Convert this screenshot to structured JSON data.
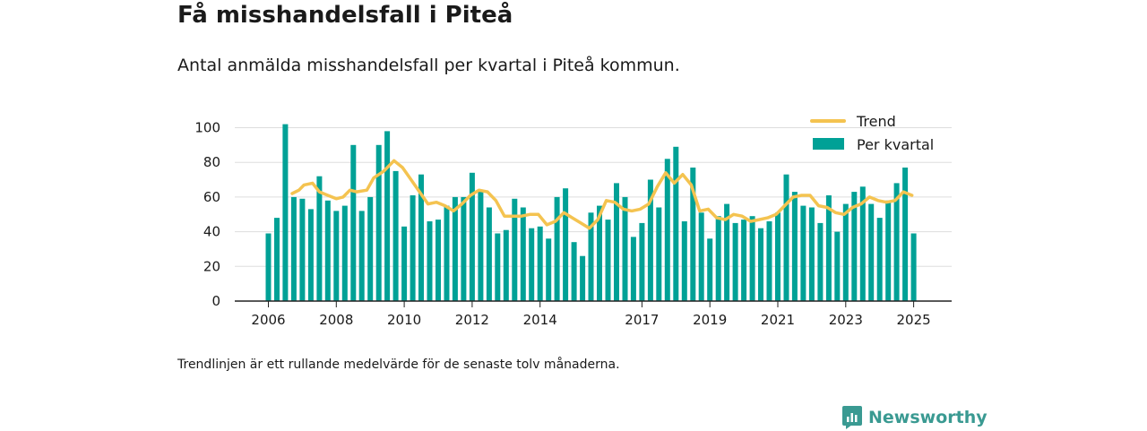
{
  "title": "Få misshandelsfall i Piteå",
  "subtitle": "Antal anmälda misshandelsfall per kvartal i Piteå kommun.",
  "footnote": "Trendlinjen är ett rullande medelvärde för de senaste tolv månaderna.",
  "brand": {
    "name": "Newsworthy",
    "logo_icon": "newsworthy-logo-icon"
  },
  "colors": {
    "bars": "#00a196",
    "trend": "#f4c350",
    "grid": "#dddddd",
    "axis": "#222222",
    "brand": "#3a9a92"
  },
  "chart_data": {
    "type": "bar",
    "title": "",
    "xlabel": "",
    "ylabel": "",
    "ylim": [
      0,
      110
    ],
    "y_ticks": [
      0,
      20,
      40,
      60,
      80,
      100
    ],
    "x_ticks": [
      {
        "label": "2006",
        "x": 2006.0
      },
      {
        "label": "2008",
        "x": 2008.0
      },
      {
        "label": "2010",
        "x": 2010.0
      },
      {
        "label": "2012",
        "x": 2012.0
      },
      {
        "label": "2014",
        "x": 2014.0
      },
      {
        "label": "2017",
        "x": 2017.0
      },
      {
        "label": "2019",
        "x": 2019.0
      },
      {
        "label": "2021",
        "x": 2021.0
      },
      {
        "label": "2023",
        "x": 2023.0
      },
      {
        "label": "2025",
        "x": 2025.0
      }
    ],
    "legend_position": "top-right",
    "series": [
      {
        "name": "Per kvartal",
        "type": "bar",
        "start": [
          2006,
          1
        ],
        "values": [
          39,
          48,
          102,
          60,
          59,
          53,
          72,
          58,
          52,
          55,
          90,
          52,
          60,
          90,
          98,
          75,
          43,
          61,
          73,
          46,
          47,
          55,
          60,
          60,
          74,
          63,
          54,
          39,
          41,
          59,
          54,
          42,
          43,
          36,
          60,
          65,
          34,
          26,
          51,
          55,
          47,
          68,
          60,
          37,
          45,
          70,
          54,
          82,
          89,
          46,
          77,
          51,
          36,
          49,
          56,
          45,
          47,
          49,
          42,
          46,
          51,
          73,
          63,
          55,
          54,
          45,
          61,
          40,
          56,
          63,
          66,
          56,
          48,
          58,
          68,
          77,
          39
        ]
      },
      {
        "name": "Trend",
        "type": "line",
        "points": [
          [
            2006.7,
            62
          ],
          [
            2006.9,
            64
          ],
          [
            2007.05,
            67
          ],
          [
            2007.3,
            68
          ],
          [
            2007.5,
            63
          ],
          [
            2007.75,
            61
          ],
          [
            2008.0,
            59
          ],
          [
            2008.2,
            60
          ],
          [
            2008.4,
            64
          ],
          [
            2008.6,
            63
          ],
          [
            2008.9,
            64
          ],
          [
            2009.1,
            71
          ],
          [
            2009.4,
            75
          ],
          [
            2009.7,
            81
          ],
          [
            2009.95,
            77
          ],
          [
            2010.2,
            70
          ],
          [
            2010.45,
            63
          ],
          [
            2010.7,
            56
          ],
          [
            2010.95,
            57
          ],
          [
            2011.2,
            55
          ],
          [
            2011.45,
            52
          ],
          [
            2011.7,
            56
          ],
          [
            2011.95,
            61
          ],
          [
            2012.2,
            64
          ],
          [
            2012.45,
            63
          ],
          [
            2012.7,
            58
          ],
          [
            2012.95,
            49
          ],
          [
            2013.2,
            49
          ],
          [
            2013.45,
            49
          ],
          [
            2013.7,
            50
          ],
          [
            2013.95,
            50
          ],
          [
            2014.2,
            44
          ],
          [
            2014.45,
            46
          ],
          [
            2014.7,
            51
          ],
          [
            2014.95,
            48
          ],
          [
            2015.2,
            45
          ],
          [
            2015.45,
            42
          ],
          [
            2015.7,
            47
          ],
          [
            2015.95,
            58
          ],
          [
            2016.2,
            57
          ],
          [
            2016.45,
            53
          ],
          [
            2016.7,
            52
          ],
          [
            2016.95,
            53
          ],
          [
            2017.2,
            56
          ],
          [
            2017.45,
            66
          ],
          [
            2017.7,
            74
          ],
          [
            2017.95,
            68
          ],
          [
            2018.2,
            73
          ],
          [
            2018.45,
            67
          ],
          [
            2018.7,
            52
          ],
          [
            2018.95,
            53
          ],
          [
            2019.2,
            48
          ],
          [
            2019.45,
            47
          ],
          [
            2019.7,
            50
          ],
          [
            2019.95,
            49
          ],
          [
            2020.2,
            46
          ],
          [
            2020.45,
            47
          ],
          [
            2020.7,
            48
          ],
          [
            2020.95,
            50
          ],
          [
            2021.2,
            55
          ],
          [
            2021.45,
            60
          ],
          [
            2021.7,
            61
          ],
          [
            2021.95,
            61
          ],
          [
            2022.2,
            55
          ],
          [
            2022.45,
            54
          ],
          [
            2022.7,
            51
          ],
          [
            2022.95,
            50
          ],
          [
            2023.2,
            54
          ],
          [
            2023.45,
            56
          ],
          [
            2023.7,
            60
          ],
          [
            2023.95,
            58
          ],
          [
            2024.2,
            57
          ],
          [
            2024.45,
            58
          ],
          [
            2024.7,
            63
          ],
          [
            2024.95,
            61
          ]
        ]
      }
    ]
  }
}
